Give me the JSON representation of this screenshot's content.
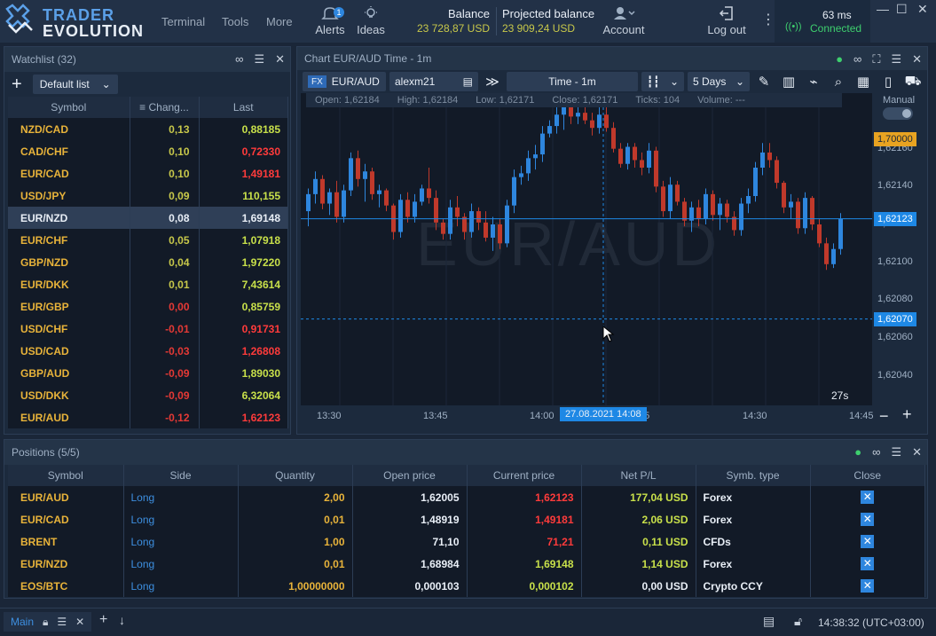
{
  "brand": {
    "line1": "TRADER",
    "line2": "EVOLUTION"
  },
  "menu": {
    "terminal": "Terminal",
    "tools": "Tools",
    "more": "More"
  },
  "alerts": {
    "label": "Alerts",
    "badge": "1"
  },
  "ideas": {
    "label": "Ideas"
  },
  "balance": {
    "label": "Balance",
    "value": "23 728,87 USD"
  },
  "projected": {
    "label": "Projected balance",
    "value": "23 909,24 USD"
  },
  "account": {
    "label": "Account"
  },
  "logout": {
    "label": "Log out"
  },
  "connection": {
    "latency": "63 ms",
    "status": "Connected"
  },
  "watchlist": {
    "title": "Watchlist (32)",
    "list_name": "Default list",
    "columns": {
      "symbol": "Symbol",
      "change": "Chang...",
      "last": "Last"
    },
    "rows": [
      {
        "symbol": "NZD/CAD",
        "change": "0,13",
        "last": "0,88185",
        "dir": "up"
      },
      {
        "symbol": "CAD/CHF",
        "change": "0,10",
        "last": "0,72330",
        "dir": "down"
      },
      {
        "symbol": "EUR/CAD",
        "change": "0,10",
        "last": "1,49181",
        "dir": "down"
      },
      {
        "symbol": "USD/JPY",
        "change": "0,09",
        "last": "110,155",
        "dir": "up"
      },
      {
        "symbol": "EUR/NZD",
        "change": "0,08",
        "last": "1,69148",
        "dir": "sel"
      },
      {
        "symbol": "EUR/CHF",
        "change": "0,05",
        "last": "1,07918",
        "dir": "up"
      },
      {
        "symbol": "GBP/NZD",
        "change": "0,04",
        "last": "1,97220",
        "dir": "up"
      },
      {
        "symbol": "EUR/DKK",
        "change": "0,01",
        "last": "7,43614",
        "dir": "up"
      },
      {
        "symbol": "EUR/GBP",
        "change": "0,00",
        "last": "0,85759",
        "dir": "up"
      },
      {
        "symbol": "USD/CHF",
        "change": "-0,01",
        "last": "0,91731",
        "dir": "down"
      },
      {
        "symbol": "USD/CAD",
        "change": "-0,03",
        "last": "1,26808",
        "dir": "down"
      },
      {
        "symbol": "GBP/AUD",
        "change": "-0,09",
        "last": "1,89030",
        "dir": "up"
      },
      {
        "symbol": "USD/DKK",
        "change": "-0,09",
        "last": "6,32064",
        "dir": "up"
      },
      {
        "symbol": "EUR/AUD",
        "change": "-0,12",
        "last": "1,62123",
        "dir": "down"
      }
    ]
  },
  "chart": {
    "title": "Chart EUR/AUD Time - 1m",
    "fx_badge": "FX",
    "symbol": "EUR/AUD",
    "account": "alexm21",
    "timeframe": "Time - 1m",
    "range": "5 Days",
    "manual_label": "Manual",
    "watermark": "EUR/AUD",
    "ohlc": {
      "open": "Open: 1,62184",
      "high": "High: 1,62184",
      "low": "Low: 1,62171",
      "close": "Close: 1,62171",
      "ticks": "Ticks: 104",
      "volume": "Volume: ---"
    },
    "countdown": "27s",
    "price_tag_top": "1,70000",
    "price_tag_last": "1,62123",
    "price_tag_cursor": "1,62070",
    "time_tag": "27.08.2021 14:08",
    "y_ticks": [
      "1,62160",
      "1,62140",
      "1,62120",
      "1,62100",
      "1,62080",
      "1,62060",
      "1,62040"
    ],
    "x_ticks": [
      "13:30",
      "13:45",
      "14:00",
      ":15",
      "14:30",
      "14:45"
    ],
    "colors": {
      "up": "#2e86de",
      "down": "#c0392b"
    }
  },
  "chart_data": {
    "type": "candlestick",
    "title": "Chart EUR/AUD Time - 1m",
    "ylim": [
      1.6203,
      1.6218
    ],
    "note_series": "approximate 1-minute candles 13:30–14:47",
    "candles": [
      [
        1.62127,
        1.62139,
        1.62119,
        1.62136
      ],
      [
        1.62136,
        1.62148,
        1.62131,
        1.62144
      ],
      [
        1.62144,
        1.62146,
        1.62128,
        1.62131
      ],
      [
        1.62131,
        1.62139,
        1.62125,
        1.62137
      ],
      [
        1.62137,
        1.62143,
        1.62121,
        1.62124
      ],
      [
        1.62124,
        1.62141,
        1.62121,
        1.62138
      ],
      [
        1.62138,
        1.62158,
        1.62135,
        1.62155
      ],
      [
        1.62155,
        1.62159,
        1.6214,
        1.62144
      ],
      [
        1.62144,
        1.62152,
        1.62132,
        1.62148
      ],
      [
        1.62148,
        1.6215,
        1.62133,
        1.62136
      ],
      [
        1.62136,
        1.62141,
        1.62129,
        1.62138
      ],
      [
        1.62138,
        1.62139,
        1.62127,
        1.6213
      ],
      [
        1.6213,
        1.62131,
        1.62112,
        1.62116
      ],
      [
        1.62116,
        1.62136,
        1.62113,
        1.62133
      ],
      [
        1.62133,
        1.62137,
        1.62121,
        1.62124
      ],
      [
        1.62124,
        1.62136,
        1.62121,
        1.62132
      ],
      [
        1.62132,
        1.62141,
        1.6213,
        1.62139
      ],
      [
        1.62139,
        1.6215,
        1.62131,
        1.62134
      ],
      [
        1.62134,
        1.62138,
        1.62117,
        1.62121
      ],
      [
        1.62121,
        1.62123,
        1.62112,
        1.62115
      ],
      [
        1.62115,
        1.62133,
        1.62112,
        1.62129
      ],
      [
        1.62129,
        1.62135,
        1.62119,
        1.62124
      ],
      [
        1.62124,
        1.62126,
        1.62112,
        1.62116
      ],
      [
        1.62116,
        1.62131,
        1.62113,
        1.62127
      ],
      [
        1.62127,
        1.62129,
        1.62117,
        1.62121
      ],
      [
        1.62121,
        1.62127,
        1.62111,
        1.62113
      ],
      [
        1.62113,
        1.62124,
        1.62106,
        1.6212
      ],
      [
        1.6212,
        1.62123,
        1.62107,
        1.6211
      ],
      [
        1.6211,
        1.62133,
        1.62108,
        1.6213
      ],
      [
        1.6213,
        1.62149,
        1.62126,
        1.62145
      ],
      [
        1.62145,
        1.62151,
        1.62141,
        1.62147
      ],
      [
        1.62147,
        1.62159,
        1.62143,
        1.62155
      ],
      [
        1.62155,
        1.62162,
        1.62149,
        1.62157
      ],
      [
        1.62157,
        1.62172,
        1.62153,
        1.62168
      ],
      [
        1.62168,
        1.62175,
        1.62166,
        1.62172
      ],
      [
        1.62172,
        1.62182,
        1.62168,
        1.62178
      ],
      [
        1.62178,
        1.62186,
        1.6217,
        1.62183
      ],
      [
        1.62183,
        1.62186,
        1.62173,
        1.62177
      ],
      [
        1.62177,
        1.62186,
        1.62173,
        1.62179
      ],
      [
        1.62179,
        1.62183,
        1.62173,
        1.62175
      ],
      [
        1.62175,
        1.62179,
        1.62167,
        1.62171
      ],
      [
        1.62171,
        1.62184,
        1.62168,
        1.62178
      ],
      [
        1.62178,
        1.62185,
        1.62169,
        1.62171
      ],
      [
        1.62171,
        1.62174,
        1.62158,
        1.6216
      ],
      [
        1.6216,
        1.62163,
        1.6215,
        1.62152
      ],
      [
        1.62152,
        1.62163,
        1.62149,
        1.62161
      ],
      [
        1.62161,
        1.62163,
        1.6215,
        1.62154
      ],
      [
        1.62154,
        1.62158,
        1.62146,
        1.6215
      ],
      [
        1.6215,
        1.62163,
        1.62147,
        1.62159
      ],
      [
        1.62159,
        1.62161,
        1.62137,
        1.6214
      ],
      [
        1.6214,
        1.62143,
        1.62124,
        1.62127
      ],
      [
        1.62127,
        1.62145,
        1.62123,
        1.62141
      ],
      [
        1.62141,
        1.62143,
        1.6213,
        1.62132
      ],
      [
        1.62132,
        1.62134,
        1.62119,
        1.62122
      ],
      [
        1.62122,
        1.62132,
        1.62116,
        1.62129
      ],
      [
        1.62129,
        1.62133,
        1.62119,
        1.62123
      ],
      [
        1.62123,
        1.62139,
        1.6212,
        1.62136
      ],
      [
        1.62136,
        1.62138,
        1.62122,
        1.62125
      ],
      [
        1.62125,
        1.62134,
        1.62117,
        1.62131
      ],
      [
        1.62131,
        1.62133,
        1.62121,
        1.62124
      ],
      [
        1.62124,
        1.62127,
        1.62114,
        1.62117
      ],
      [
        1.62117,
        1.62134,
        1.62114,
        1.62131
      ],
      [
        1.62131,
        1.62139,
        1.62126,
        1.62135
      ],
      [
        1.62135,
        1.62153,
        1.62132,
        1.6215
      ],
      [
        1.6215,
        1.62163,
        1.62146,
        1.62158
      ],
      [
        1.62158,
        1.62163,
        1.6215,
        1.62154
      ],
      [
        1.62154,
        1.62156,
        1.62139,
        1.62142
      ],
      [
        1.62142,
        1.62143,
        1.62126,
        1.62129
      ],
      [
        1.62129,
        1.62136,
        1.62123,
        1.62132
      ],
      [
        1.62132,
        1.62134,
        1.62115,
        1.62118
      ],
      [
        1.62118,
        1.62137,
        1.62115,
        1.62134
      ],
      [
        1.62134,
        1.62135,
        1.62117,
        1.6212
      ],
      [
        1.6212,
        1.62123,
        1.62108,
        1.6211
      ],
      [
        1.6211,
        1.62113,
        1.62096,
        1.62099
      ],
      [
        1.62099,
        1.6211,
        1.62097,
        1.62107
      ],
      [
        1.62107,
        1.62126,
        1.62104,
        1.62123
      ]
    ]
  },
  "positions": {
    "title": "Positions (5/5)",
    "columns": {
      "symbol": "Symbol",
      "side": "Side",
      "quantity": "Quantity",
      "open": "Open price",
      "current": "Current price",
      "pnl": "Net P/L",
      "type": "Symb. type",
      "close": "Close"
    },
    "rows": [
      {
        "symbol": "EUR/AUD",
        "side": "Long",
        "quantity": "2,00",
        "open": "1,62005",
        "current": "1,62123",
        "pnl": "177,04 USD",
        "type": "Forex",
        "cur_dir": "down",
        "pnl_dir": "up"
      },
      {
        "symbol": "EUR/CAD",
        "side": "Long",
        "quantity": "0,01",
        "open": "1,48919",
        "current": "1,49181",
        "pnl": "2,06 USD",
        "type": "Forex",
        "cur_dir": "down",
        "pnl_dir": "up"
      },
      {
        "symbol": "BRENT",
        "side": "Long",
        "quantity": "1,00",
        "open": "71,10",
        "current": "71,21",
        "pnl": "0,11 USD",
        "type": "CFDs",
        "cur_dir": "down",
        "pnl_dir": "up"
      },
      {
        "symbol": "EUR/NZD",
        "side": "Long",
        "quantity": "0,01",
        "open": "1,68984",
        "current": "1,69148",
        "pnl": "1,14 USD",
        "type": "Forex",
        "cur_dir": "up",
        "pnl_dir": "up"
      },
      {
        "symbol": "EOS/BTC",
        "side": "Long",
        "quantity": "1,00000000",
        "open": "0,000103",
        "current": "0,000102",
        "pnl": "0,00 USD",
        "type": "Crypto CCY",
        "cur_dir": "up",
        "pnl_dir": "flat"
      }
    ],
    "close_glyph": "✕"
  },
  "status": {
    "tab": "Main",
    "time": "14:38:32 (UTC+03:00)"
  }
}
